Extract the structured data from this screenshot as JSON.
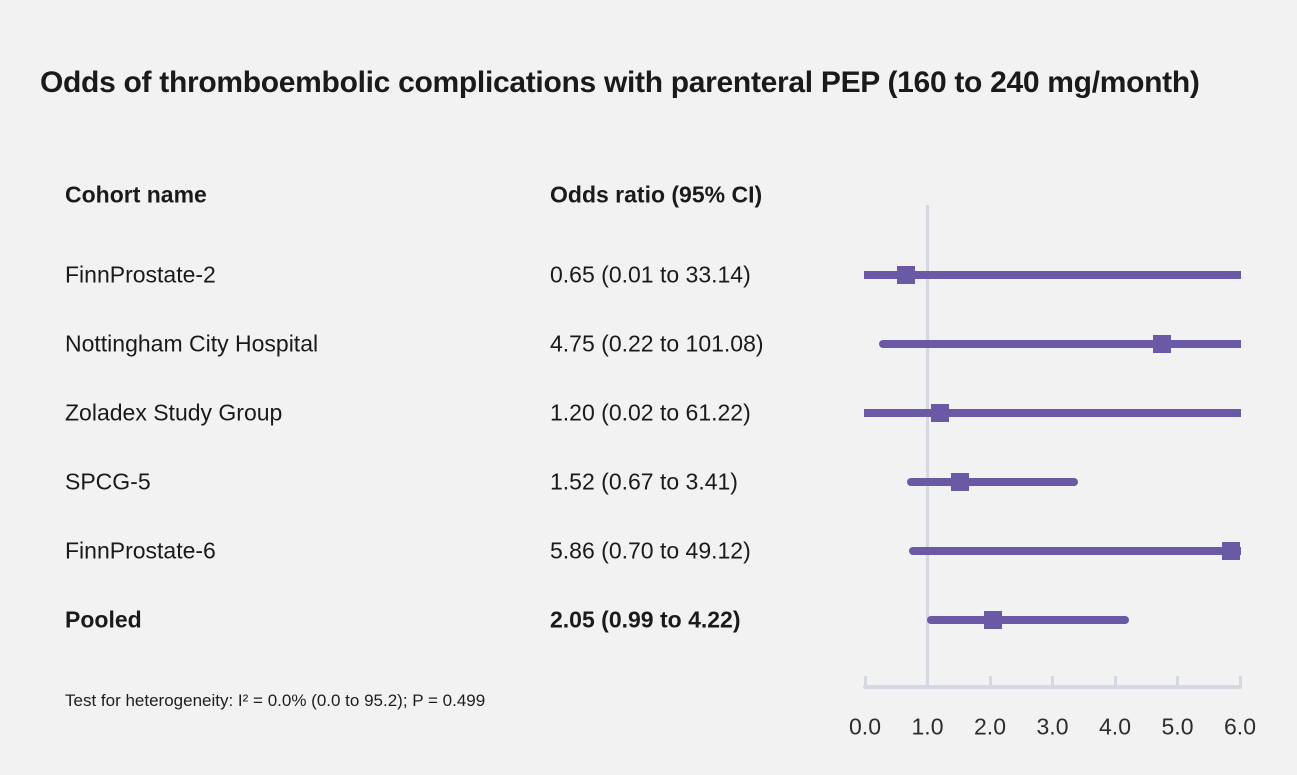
{
  "title": "Odds of thromboembolic complications with parenteral PEP (160 to 240 mg/month)",
  "columns": {
    "cohort": "Cohort name",
    "odds": "Odds ratio (95% CI)"
  },
  "footer": "Test for heterogeneity: I² = 0.0% (0.0 to 95.2); P = 0.499",
  "colors": {
    "accent": "#6a5aa5",
    "axis": "#d4d8e0",
    "text": "#1a1a1a",
    "background": "#f2f2f2"
  },
  "chart_data": {
    "type": "scatter",
    "subtype": "forest-plot",
    "title": "Odds of thromboembolic complications with parenteral PEP (160 to 240 mg/month)",
    "xlabel": "Odds ratio",
    "xlim": [
      0.0,
      6.0
    ],
    "x_ticks": [
      0.0,
      1.0,
      2.0,
      3.0,
      4.0,
      5.0,
      6.0
    ],
    "x_tick_labels": [
      "0.0",
      "1.0",
      "2.0",
      "3.0",
      "4.0",
      "5.0",
      "6.0"
    ],
    "reference_line_x": 1.0,
    "grid": false,
    "legend": "none",
    "rows": [
      {
        "label": "FinnProstate-2",
        "or": 0.65,
        "ci_low": 0.01,
        "ci_high": 33.14,
        "display": "0.65 (0.01 to 33.14)",
        "bold": false
      },
      {
        "label": "Nottingham City Hospital",
        "or": 4.75,
        "ci_low": 0.22,
        "ci_high": 101.08,
        "display": "4.75 (0.22 to 101.08)",
        "bold": false
      },
      {
        "label": "Zoladex Study Group",
        "or": 1.2,
        "ci_low": 0.02,
        "ci_high": 61.22,
        "display": "1.20 (0.02 to 61.22)",
        "bold": false
      },
      {
        "label": "SPCG-5",
        "or": 1.52,
        "ci_low": 0.67,
        "ci_high": 3.41,
        "display": "1.52 (0.67 to 3.41)",
        "bold": false
      },
      {
        "label": "FinnProstate-6",
        "or": 5.86,
        "ci_low": 0.7,
        "ci_high": 49.12,
        "display": "5.86 (0.70 to 49.12)",
        "bold": false
      },
      {
        "label": "Pooled",
        "or": 2.05,
        "ci_low": 0.99,
        "ci_high": 4.22,
        "display": "2.05 (0.99 to 4.22)",
        "bold": true
      }
    ],
    "heterogeneity": "Test for heterogeneity: I² = 0.0% (0.0 to 95.2); P = 0.499"
  }
}
